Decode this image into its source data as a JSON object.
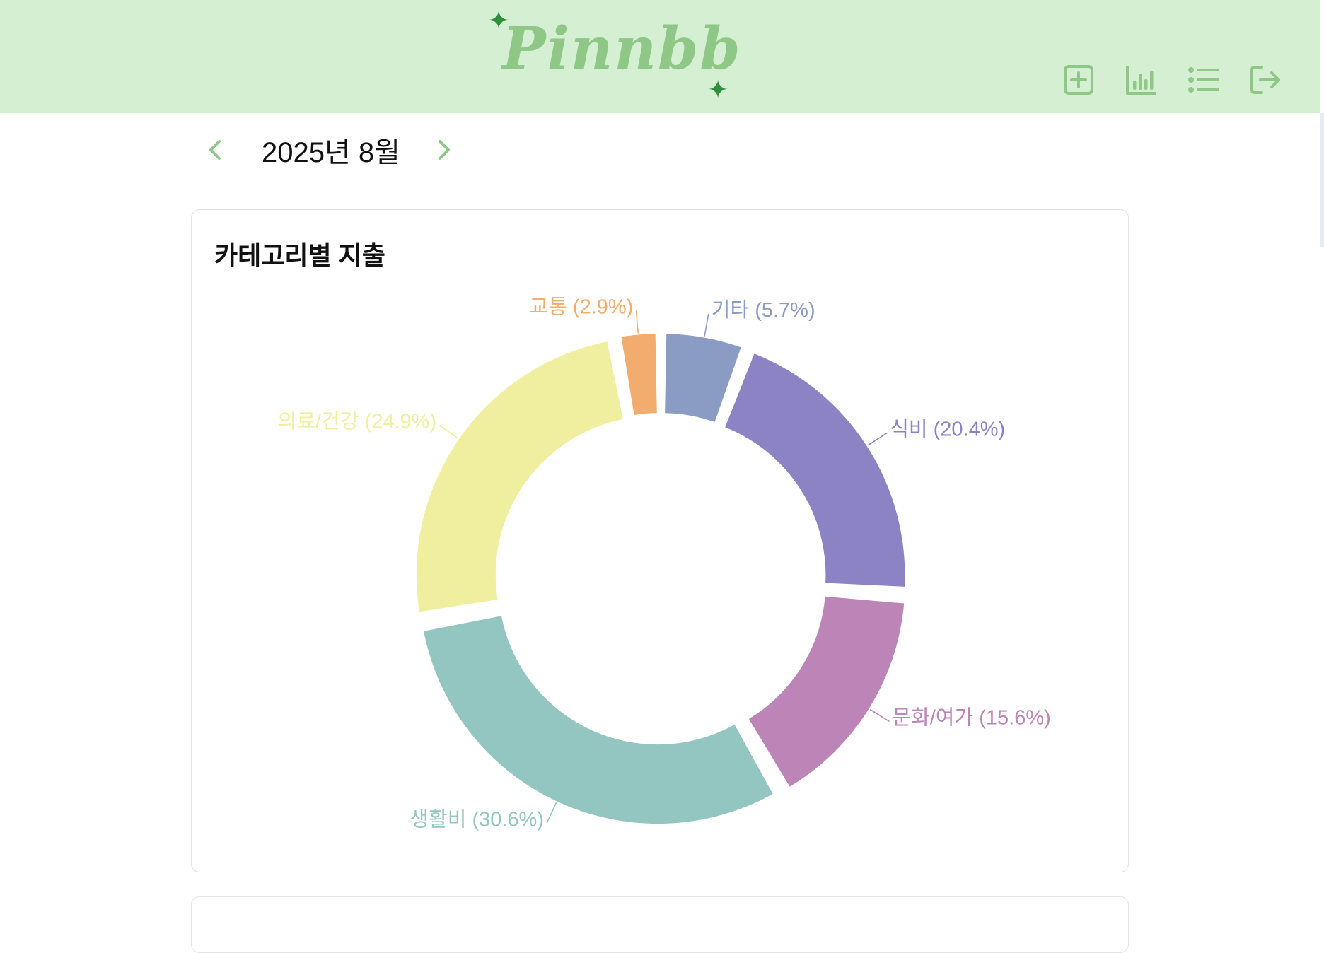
{
  "app": {
    "logo_text": "Pinnbb",
    "brand_color": "#8fc787",
    "sparkle_color": "#2f8f3a",
    "header_bg": "#d5efd2",
    "icons": [
      {
        "name": "add-expense-icon",
        "glyph": "plus-square"
      },
      {
        "name": "statistics-icon",
        "glyph": "bar-chart"
      },
      {
        "name": "list-icon",
        "glyph": "list"
      },
      {
        "name": "logout-icon",
        "glyph": "sign-out"
      }
    ]
  },
  "month_nav": {
    "label": "2025년 8월",
    "prev_icon": "chevron-left-icon",
    "next_icon": "chevron-right-icon"
  },
  "card": {
    "title": "카테고리별 지출"
  },
  "chart_data": {
    "type": "pie",
    "variant": "donut",
    "title": "카테고리별 지출",
    "slices": [
      {
        "label": "기타 (5.7%)",
        "value": 5.7,
        "color": "#8a9cc4"
      },
      {
        "label": "식비 (20.4%)",
        "value": 20.4,
        "color": "#8b83c4"
      },
      {
        "label": "문화/여가 (15.6%)",
        "value": 15.6,
        "color": "#bd85b7"
      },
      {
        "label": "생활비 (30.6%)",
        "value": 30.6,
        "color": "#93c6c1"
      },
      {
        "label": "의료/건강 (24.9%)",
        "value": 24.9,
        "color": "#f0ef9f"
      },
      {
        "label": "교통 (2.9%)",
        "value": 2.9,
        "color": "#f2ac6e"
      }
    ],
    "legend": "none"
  }
}
